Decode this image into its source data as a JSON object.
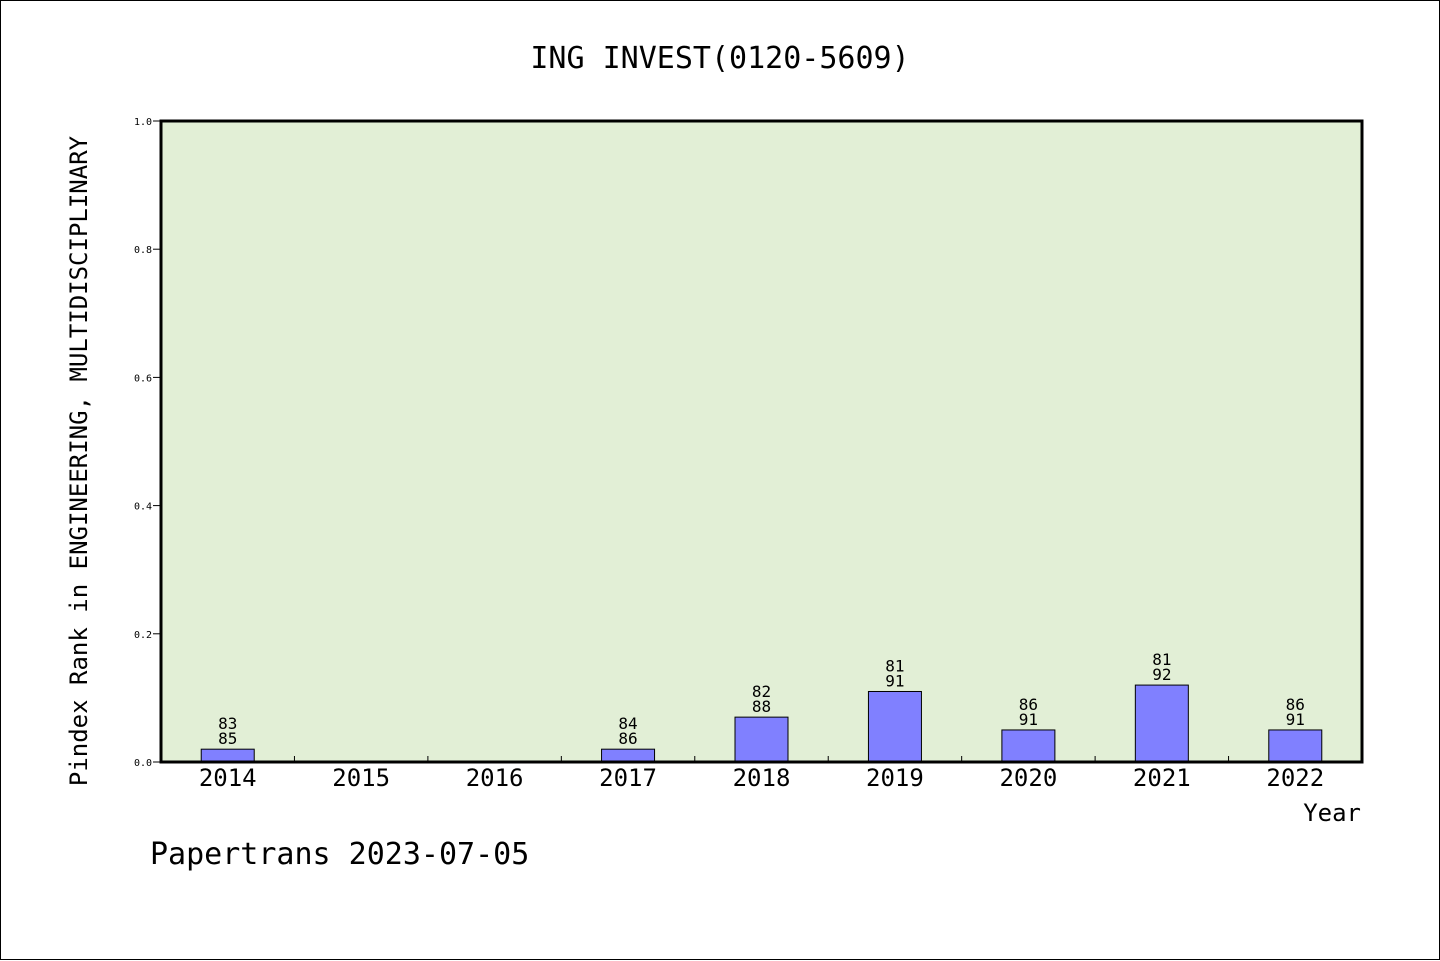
{
  "chart_data": {
    "type": "bar",
    "title": "ING INVEST(0120-5609)",
    "xlabel": "Year",
    "ylabel": "Pindex Rank in ENGINEERING, MULTIDISCIPLINARY",
    "categories": [
      "2014",
      "2015",
      "2016",
      "2017",
      "2018",
      "2019",
      "2020",
      "2021",
      "2022"
    ],
    "values": [
      0.02,
      null,
      null,
      0.02,
      0.07,
      0.11,
      0.05,
      0.12,
      0.05
    ],
    "bar_labels": [
      [
        "83",
        "85"
      ],
      null,
      null,
      [
        "84",
        "86"
      ],
      [
        "82",
        "88"
      ],
      [
        "81",
        "91"
      ],
      [
        "86",
        "91"
      ],
      [
        "81",
        "92"
      ],
      [
        "86",
        "91"
      ]
    ],
    "ylim": [
      0,
      1.0
    ],
    "yticks": [
      "0.0",
      "0.2",
      "0.4",
      "0.6",
      "0.8",
      "1.0"
    ],
    "grid": false,
    "colors": {
      "plot_background": "#e2efd6",
      "bar": "#8080ff",
      "bar_edge": "#000000",
      "axis": "#000000"
    }
  },
  "footer": {
    "source": "Papertrans 2023-07-05"
  }
}
